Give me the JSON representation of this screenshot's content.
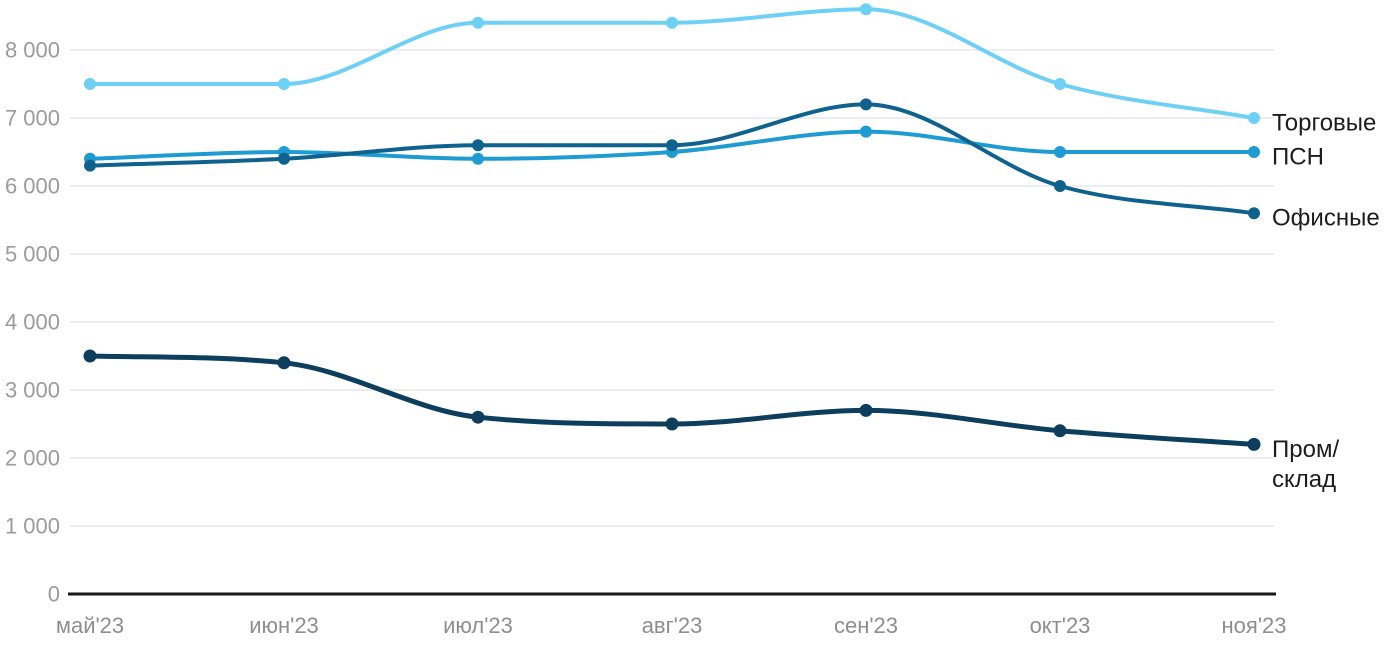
{
  "chart_data": {
    "type": "line",
    "title": "",
    "xlabel": "",
    "ylabel": "",
    "categories": [
      "май'23",
      "июн'23",
      "июл'23",
      "авг'23",
      "сен'23",
      "окт'23",
      "ноя'23"
    ],
    "series": [
      {
        "name": "Торговые",
        "color": "#6FD0F6",
        "values": [
          7500,
          7500,
          8400,
          8400,
          8600,
          7500,
          7000
        ],
        "label_lines": [
          "Торговые"
        ]
      },
      {
        "name": "ПСН",
        "color": "#1E9CD2",
        "values": [
          6400,
          6500,
          6400,
          6500,
          6800,
          6500,
          6500
        ],
        "label_lines": [
          "ПСН"
        ]
      },
      {
        "name": "Офисные",
        "color": "#0F628E",
        "values": [
          6300,
          6400,
          6600,
          6600,
          7200,
          6000,
          5600
        ],
        "label_lines": [
          "Офисные"
        ]
      },
      {
        "name": "Пром/склад",
        "color": "#0E3E5E",
        "values": [
          3500,
          3400,
          2600,
          2500,
          2700,
          2400,
          2200
        ],
        "label_lines": [
          "Пром/",
          "склад"
        ]
      }
    ],
    "yticks": [
      0,
      1000,
      2000,
      3000,
      4000,
      5000,
      6000,
      7000,
      8000
    ],
    "ytick_labels": [
      "0",
      "1 000",
      "2 000",
      "3 000",
      "4 000",
      "5 000",
      "6 000",
      "7 000",
      "8 000"
    ],
    "ylim": [
      0,
      8730
    ],
    "grid": true,
    "legend_position": "right-end-of-line",
    "colors": {
      "gridline": "#e7e7e7",
      "axis": "#1a1a1a",
      "ytick_text": "#9b9b9b",
      "xtick_text": "#8e8e8e",
      "label_text": "#1c1c1c",
      "background": "#ffffff"
    }
  }
}
